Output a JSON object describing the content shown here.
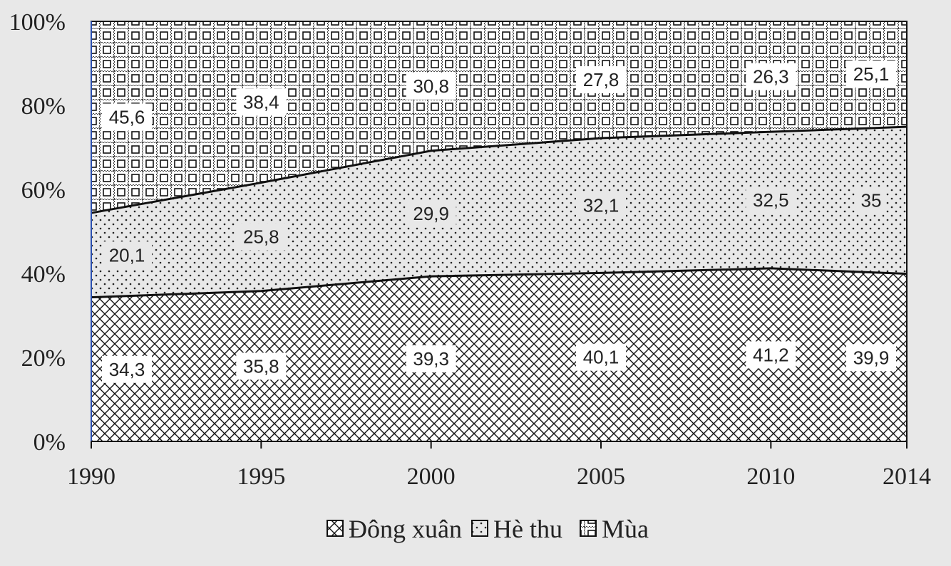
{
  "chart_data": {
    "type": "area",
    "stacking": "percent",
    "x": [
      1990,
      1995,
      2000,
      2005,
      2010,
      2014
    ],
    "x_tick_labels": [
      "1990",
      "1995",
      "2000",
      "2005",
      "2010",
      "2014"
    ],
    "y_tick_labels": [
      "0%",
      "20%",
      "40%",
      "60%",
      "80%",
      "100%"
    ],
    "ylim": [
      0,
      100
    ],
    "series": [
      {
        "name": "Đông xuân",
        "values": [
          34.3,
          35.8,
          39.3,
          40.1,
          41.2,
          39.9
        ],
        "labels": [
          "34,3",
          "35,8",
          "39,3",
          "40,1",
          "41,2",
          "39,9"
        ],
        "pattern": "crosshatch"
      },
      {
        "name": "Hè thu",
        "values": [
          20.1,
          25.8,
          29.9,
          32.1,
          32.5,
          35.0
        ],
        "labels": [
          "20,1",
          "25,8",
          "29,9",
          "32,1",
          "32,5",
          "35"
        ],
        "pattern": "dots"
      },
      {
        "name": "Mùa",
        "values": [
          45.6,
          38.4,
          30.8,
          27.8,
          26.3,
          25.1
        ],
        "labels": [
          "45,6",
          "38,4",
          "30,8",
          "27,8",
          "26,3",
          "25,1"
        ],
        "pattern": "squares"
      }
    ],
    "legend_position": "bottom-center",
    "grid": false
  }
}
